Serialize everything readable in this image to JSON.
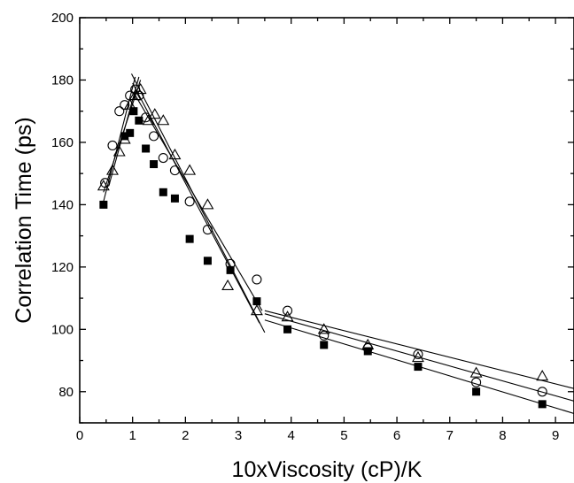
{
  "chart_data": {
    "type": "scatter",
    "xlabel": "10xViscosity (cP)/K",
    "ylabel": "Correlation Time (ps)",
    "xlim": [
      0,
      9.35
    ],
    "ylim": [
      70,
      200
    ],
    "x_ticks": [
      0,
      1,
      2,
      3,
      4,
      5,
      6,
      7,
      8,
      9
    ],
    "y_ticks": [
      80,
      100,
      120,
      140,
      160,
      180,
      200
    ],
    "x_minor_step": 0.5,
    "y_minor_step": 10,
    "grid": false,
    "legend": "none",
    "series": [
      {
        "marker": "filled-square",
        "points": [
          [
            0.45,
            140
          ],
          [
            0.85,
            162
          ],
          [
            0.95,
            163
          ],
          [
            1.02,
            170
          ],
          [
            1.12,
            167
          ],
          [
            1.25,
            158
          ],
          [
            1.4,
            153
          ],
          [
            1.58,
            144
          ],
          [
            1.8,
            142
          ],
          [
            2.08,
            129
          ],
          [
            2.42,
            122
          ],
          [
            2.85,
            119
          ],
          [
            3.35,
            109
          ],
          [
            3.93,
            100
          ],
          [
            4.62,
            95
          ],
          [
            5.45,
            93
          ],
          [
            6.4,
            88
          ],
          [
            7.5,
            80
          ],
          [
            8.75,
            76
          ]
        ]
      },
      {
        "marker": "open-circle",
        "points": [
          [
            0.48,
            147
          ],
          [
            0.62,
            159
          ],
          [
            0.75,
            170
          ],
          [
            0.85,
            172
          ],
          [
            0.95,
            175
          ],
          [
            1.05,
            177
          ],
          [
            1.12,
            175
          ],
          [
            1.25,
            168
          ],
          [
            1.4,
            162
          ],
          [
            1.58,
            155
          ],
          [
            1.8,
            151
          ],
          [
            2.08,
            141
          ],
          [
            2.42,
            132
          ],
          [
            2.85,
            121
          ],
          [
            3.35,
            116
          ],
          [
            3.93,
            106
          ],
          [
            4.62,
            98
          ],
          [
            5.45,
            94
          ],
          [
            6.4,
            92
          ],
          [
            7.5,
            83
          ],
          [
            8.75,
            80
          ]
        ]
      },
      {
        "marker": "open-triangle",
        "points": [
          [
            0.45,
            146
          ],
          [
            0.62,
            151
          ],
          [
            0.75,
            157
          ],
          [
            0.85,
            161
          ],
          [
            0.95,
            172
          ],
          [
            1.05,
            175
          ],
          [
            1.15,
            177
          ],
          [
            1.3,
            167
          ],
          [
            1.42,
            169
          ],
          [
            1.58,
            167
          ],
          [
            1.8,
            156
          ],
          [
            2.08,
            151
          ],
          [
            2.42,
            140
          ],
          [
            2.8,
            114
          ],
          [
            3.35,
            106
          ],
          [
            3.93,
            104
          ],
          [
            4.62,
            100
          ],
          [
            5.45,
            95
          ],
          [
            6.4,
            91
          ],
          [
            7.5,
            86
          ],
          [
            8.75,
            85
          ]
        ]
      }
    ],
    "fit_lines": [
      [
        [
          0.45,
          141
        ],
        [
          1.05,
          181
        ]
      ],
      [
        [
          0.55,
          146
        ],
        [
          1.12,
          181
        ]
      ],
      [
        [
          0.45,
          144
        ],
        [
          1.15,
          180
        ]
      ],
      [
        [
          0.98,
          182
        ],
        [
          3.5,
          99
        ]
      ],
      [
        [
          1.0,
          179
        ],
        [
          3.4,
          102
        ]
      ],
      [
        [
          1.02,
          176
        ],
        [
          3.45,
          106
        ]
      ],
      [
        [
          3.5,
          103
        ],
        [
          9.35,
          73
        ]
      ],
      [
        [
          3.5,
          105
        ],
        [
          9.35,
          77
        ]
      ],
      [
        [
          3.5,
          106
        ],
        [
          9.35,
          81
        ]
      ]
    ]
  }
}
